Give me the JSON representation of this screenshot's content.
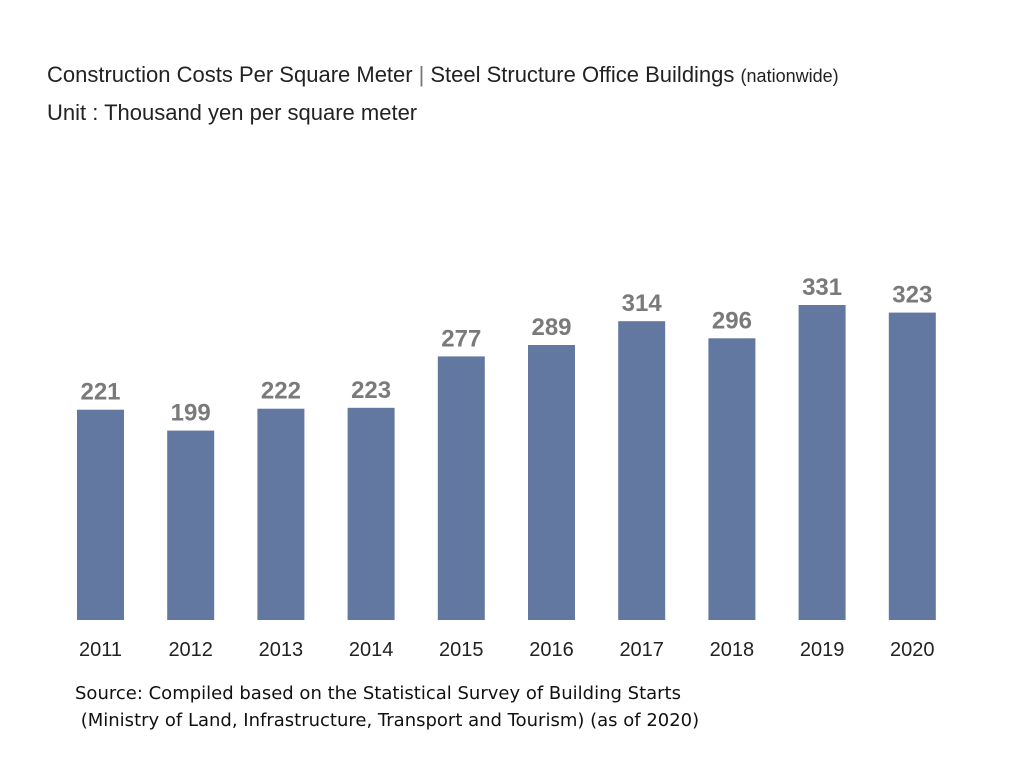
{
  "title": {
    "main": "Construction Costs Per Square Meter",
    "separator": "|",
    "series": "Steel Structure Office Buildings",
    "scope": "(nationwide)",
    "unit": "Unit : Thousand yen per square meter"
  },
  "source": {
    "line1": "Source: Compiled based on the Statistical Survey of Building Starts",
    "line2": " (Ministry of Land, Infrastructure, Transport and Tourism) (as of 2020)"
  },
  "colors": {
    "bar": "#6378a0",
    "label": "#7a7a7a",
    "tick": "#222222"
  },
  "chart_data": {
    "type": "bar",
    "title": "Construction Costs Per Square Meter | Steel Structure Office Buildings (nationwide)",
    "xlabel": "",
    "ylabel": "Thousand yen per square meter",
    "categories": [
      "2011",
      "2012",
      "2013",
      "2014",
      "2015",
      "2016",
      "2017",
      "2018",
      "2019",
      "2020"
    ],
    "values": [
      221,
      199,
      222,
      223,
      277,
      289,
      314,
      296,
      331,
      323
    ],
    "grid": false,
    "legend": "none"
  }
}
